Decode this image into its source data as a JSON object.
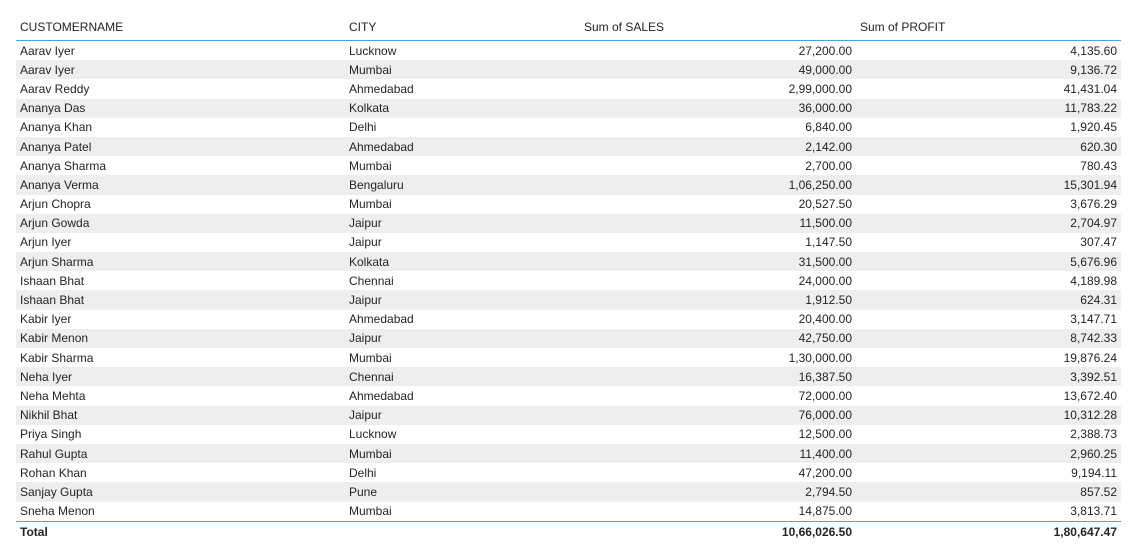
{
  "table": {
    "headers": {
      "customer": "CUSTOMERNAME",
      "city": "CITY",
      "sales": "Sum of SALES",
      "profit": "Sum of PROFIT"
    },
    "rows": [
      {
        "customer": "Aarav Iyer",
        "city": "Lucknow",
        "sales": "27,200.00",
        "profit": "4,135.60"
      },
      {
        "customer": "Aarav Iyer",
        "city": "Mumbai",
        "sales": "49,000.00",
        "profit": "9,136.72"
      },
      {
        "customer": "Aarav Reddy",
        "city": "Ahmedabad",
        "sales": "2,99,000.00",
        "profit": "41,431.04"
      },
      {
        "customer": "Ananya Das",
        "city": "Kolkata",
        "sales": "36,000.00",
        "profit": "11,783.22"
      },
      {
        "customer": "Ananya Khan",
        "city": "Delhi",
        "sales": "6,840.00",
        "profit": "1,920.45"
      },
      {
        "customer": "Ananya Patel",
        "city": "Ahmedabad",
        "sales": "2,142.00",
        "profit": "620.30"
      },
      {
        "customer": "Ananya Sharma",
        "city": "Mumbai",
        "sales": "2,700.00",
        "profit": "780.43"
      },
      {
        "customer": "Ananya Verma",
        "city": "Bengaluru",
        "sales": "1,06,250.00",
        "profit": "15,301.94"
      },
      {
        "customer": "Arjun Chopra",
        "city": "Mumbai",
        "sales": "20,527.50",
        "profit": "3,676.29"
      },
      {
        "customer": "Arjun Gowda",
        "city": "Jaipur",
        "sales": "11,500.00",
        "profit": "2,704.97"
      },
      {
        "customer": "Arjun Iyer",
        "city": "Jaipur",
        "sales": "1,147.50",
        "profit": "307.47"
      },
      {
        "customer": "Arjun Sharma",
        "city": "Kolkata",
        "sales": "31,500.00",
        "profit": "5,676.96"
      },
      {
        "customer": "Ishaan Bhat",
        "city": "Chennai",
        "sales": "24,000.00",
        "profit": "4,189.98"
      },
      {
        "customer": "Ishaan Bhat",
        "city": "Jaipur",
        "sales": "1,912.50",
        "profit": "624.31"
      },
      {
        "customer": "Kabir Iyer",
        "city": "Ahmedabad",
        "sales": "20,400.00",
        "profit": "3,147.71"
      },
      {
        "customer": "Kabir Menon",
        "city": "Jaipur",
        "sales": "42,750.00",
        "profit": "8,742.33"
      },
      {
        "customer": "Kabir Sharma",
        "city": "Mumbai",
        "sales": "1,30,000.00",
        "profit": "19,876.24"
      },
      {
        "customer": "Neha Iyer",
        "city": "Chennai",
        "sales": "16,387.50",
        "profit": "3,392.51"
      },
      {
        "customer": "Neha Mehta",
        "city": "Ahmedabad",
        "sales": "72,000.00",
        "profit": "13,672.40"
      },
      {
        "customer": "Nikhil Bhat",
        "city": "Jaipur",
        "sales": "76,000.00",
        "profit": "10,312.28"
      },
      {
        "customer": "Priya Singh",
        "city": "Lucknow",
        "sales": "12,500.00",
        "profit": "2,388.73"
      },
      {
        "customer": "Rahul Gupta",
        "city": "Mumbai",
        "sales": "11,400.00",
        "profit": "2,960.25"
      },
      {
        "customer": "Rohan Khan",
        "city": "Delhi",
        "sales": "47,200.00",
        "profit": "9,194.11"
      },
      {
        "customer": "Sanjay Gupta",
        "city": "Pune",
        "sales": "2,794.50",
        "profit": "857.52"
      },
      {
        "customer": "Sneha Menon",
        "city": "Mumbai",
        "sales": "14,875.00",
        "profit": "3,813.71"
      }
    ],
    "total": {
      "label": "Total",
      "sales": "10,66,026.50",
      "profit": "1,80,647.47"
    }
  }
}
